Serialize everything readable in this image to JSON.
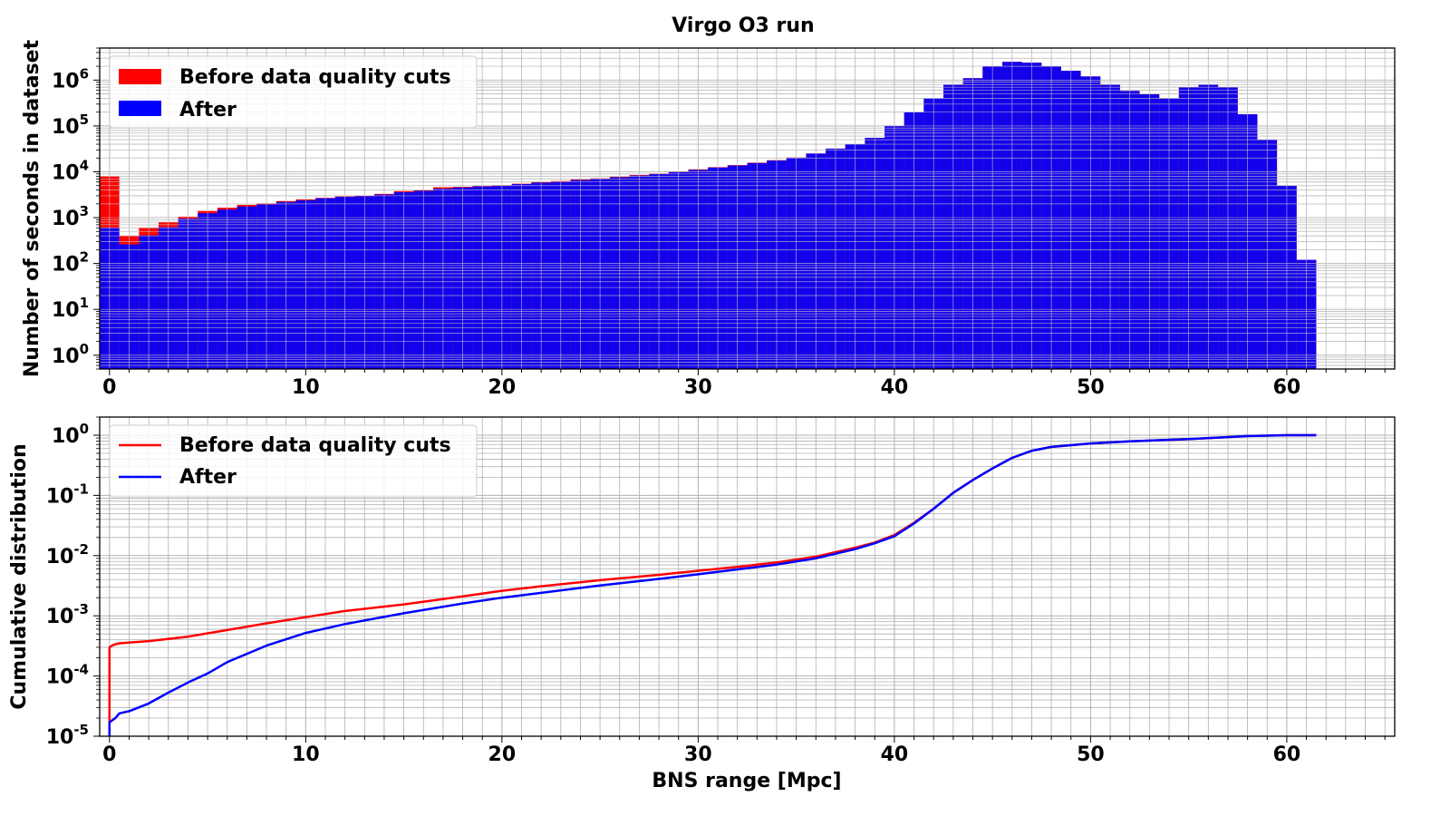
{
  "figure": {
    "title": "Virgo O3 run"
  },
  "chart_data": [
    {
      "type": "bar",
      "title": "Virgo O3 run",
      "xlabel": "",
      "ylabel": "Number of seconds in dataset",
      "yscale": "log",
      "xlim": [
        -0.5,
        65.5
      ],
      "ylim": [
        0.5,
        5000000
      ],
      "bin_width": 1,
      "x": [
        0,
        1,
        2,
        3,
        4,
        5,
        6,
        7,
        8,
        9,
        10,
        11,
        12,
        13,
        14,
        15,
        16,
        17,
        18,
        19,
        20,
        21,
        22,
        23,
        24,
        25,
        26,
        27,
        28,
        29,
        30,
        31,
        32,
        33,
        34,
        35,
        36,
        37,
        38,
        39,
        40,
        41,
        42,
        43,
        44,
        45,
        46,
        47,
        48,
        49,
        50,
        51,
        52,
        53,
        54,
        55,
        56,
        57,
        58,
        59,
        60,
        61
      ],
      "series": [
        {
          "name": "Before data quality cuts",
          "color": "#ff0000",
          "values": [
            8000,
            400,
            600,
            800,
            1050,
            1400,
            1650,
            1900,
            2050,
            2300,
            2500,
            2700,
            2900,
            3000,
            3300,
            3800,
            4000,
            4600,
            4700,
            4900,
            5100,
            5500,
            6000,
            6300,
            6800,
            7200,
            7800,
            8500,
            9200,
            10200,
            11300,
            12600,
            14000,
            15800,
            17900,
            20500,
            25000,
            32000,
            40000,
            55000,
            100000,
            200000,
            400000,
            800000,
            1100000,
            2000000,
            2500000,
            2400000,
            2000000,
            1600000,
            1200000,
            800000,
            580000,
            490000,
            400000,
            700000,
            800000,
            700000,
            180000,
            50000,
            5000,
            120
          ]
        },
        {
          "name": "After",
          "color": "#0000ff",
          "values": [
            600,
            260,
            410,
            620,
            950,
            1250,
            1500,
            1750,
            1950,
            2200,
            2400,
            2650,
            2850,
            2950,
            3200,
            3600,
            3850,
            4300,
            4550,
            4800,
            5000,
            5400,
            5800,
            6100,
            6600,
            7000,
            7600,
            8300,
            9000,
            10000,
            11000,
            12400,
            13700,
            15500,
            17600,
            20200,
            25000,
            32000,
            40000,
            55000,
            100000,
            200000,
            400000,
            800000,
            1100000,
            2000000,
            2500000,
            2400000,
            2000000,
            1600000,
            1200000,
            800000,
            580000,
            490000,
            400000,
            700000,
            800000,
            700000,
            180000,
            50000,
            5000,
            120
          ]
        }
      ],
      "legend": "top-left",
      "grid": true
    },
    {
      "type": "line",
      "xlabel": "BNS range [Mpc]",
      "ylabel": "Cumulative distribution",
      "yscale": "log",
      "xlim": [
        -0.5,
        65.5
      ],
      "ylim": [
        1e-05,
        2
      ],
      "series": [
        {
          "name": "Before data quality cuts",
          "color": "#ff0000",
          "points": [
            [
              0,
              1e-05
            ],
            [
              0,
              0.0003
            ],
            [
              0.2,
              0.00033
            ],
            [
              0.5,
              0.00035
            ],
            [
              2,
              0.00038
            ],
            [
              4,
              0.00045
            ],
            [
              6,
              0.00058
            ],
            [
              8,
              0.00075
            ],
            [
              10,
              0.00095
            ],
            [
              12,
              0.0012
            ],
            [
              15,
              0.00155
            ],
            [
              18,
              0.0021
            ],
            [
              20,
              0.0026
            ],
            [
              22,
              0.0031
            ],
            [
              25,
              0.0039
            ],
            [
              28,
              0.0048
            ],
            [
              30,
              0.0056
            ],
            [
              32,
              0.0065
            ],
            [
              34,
              0.0077
            ],
            [
              36,
              0.0096
            ],
            [
              38,
              0.0135
            ],
            [
              39,
              0.0165
            ],
            [
              40,
              0.022
            ],
            [
              41,
              0.035
            ],
            [
              42,
              0.06
            ],
            [
              43,
              0.11
            ],
            [
              44,
              0.18
            ],
            [
              45,
              0.28
            ],
            [
              46,
              0.42
            ],
            [
              47,
              0.55
            ],
            [
              48,
              0.64
            ],
            [
              50,
              0.73
            ],
            [
              52,
              0.79
            ],
            [
              55,
              0.86
            ],
            [
              57,
              0.93
            ],
            [
              58,
              0.97
            ],
            [
              60,
              1.0
            ],
            [
              61.5,
              1.0
            ]
          ]
        },
        {
          "name": "After",
          "color": "#0000ff",
          "points": [
            [
              0,
              1e-05
            ],
            [
              0,
              1.7e-05
            ],
            [
              0.3,
              2e-05
            ],
            [
              0.5,
              2.4e-05
            ],
            [
              1,
              2.6e-05
            ],
            [
              2,
              3.5e-05
            ],
            [
              3,
              5.3e-05
            ],
            [
              4,
              7.8e-05
            ],
            [
              5,
              0.00011
            ],
            [
              6,
              0.00017
            ],
            [
              8,
              0.00032
            ],
            [
              10,
              0.00052
            ],
            [
              12,
              0.00073
            ],
            [
              15,
              0.0011
            ],
            [
              18,
              0.0016
            ],
            [
              20,
              0.002
            ],
            [
              22,
              0.0024
            ],
            [
              25,
              0.0032
            ],
            [
              28,
              0.0041
            ],
            [
              30,
              0.0049
            ],
            [
              32,
              0.0059
            ],
            [
              34,
              0.0071
            ],
            [
              36,
              0.009
            ],
            [
              38,
              0.0128
            ],
            [
              39,
              0.016
            ],
            [
              40,
              0.021
            ],
            [
              41,
              0.034
            ],
            [
              42,
              0.06
            ],
            [
              43,
              0.11
            ],
            [
              44,
              0.18
            ],
            [
              45,
              0.28
            ],
            [
              46,
              0.42
            ],
            [
              47,
              0.55
            ],
            [
              48,
              0.64
            ],
            [
              50,
              0.73
            ],
            [
              52,
              0.79
            ],
            [
              55,
              0.86
            ],
            [
              57,
              0.93
            ],
            [
              58,
              0.97
            ],
            [
              60,
              1.0
            ],
            [
              61.5,
              1.0
            ]
          ]
        }
      ],
      "legend": "top-left",
      "grid": true
    }
  ],
  "axes": {
    "x_ticks": [
      "0",
      "10",
      "20",
      "30",
      "40",
      "50",
      "60"
    ],
    "top_y_exponents": [
      "0",
      "1",
      "2",
      "3",
      "4",
      "5",
      "6"
    ],
    "bottom_y_exponents": [
      "-5",
      "-4",
      "-3",
      "-2",
      "-1",
      "0"
    ],
    "tick_base": "10"
  }
}
